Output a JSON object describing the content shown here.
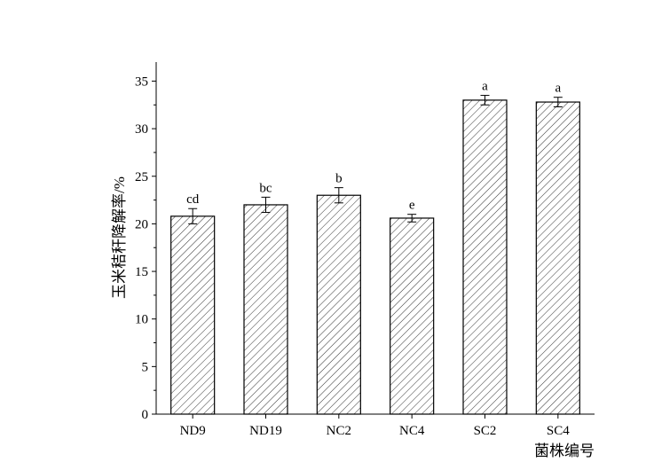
{
  "chart_data": {
    "type": "bar",
    "categories": [
      "ND9",
      "ND19",
      "NC2",
      "NC4",
      "SC2",
      "SC4"
    ],
    "values": [
      20.8,
      22.0,
      23.0,
      20.6,
      33.0,
      32.8
    ],
    "errors": [
      0.8,
      0.8,
      0.8,
      0.4,
      0.5,
      0.5
    ],
    "annotations": [
      "cd",
      "bc",
      "b",
      "e",
      "a",
      "a"
    ],
    "title": "",
    "xlabel": "菌株编号",
    "ylabel": "玉米秸秆降解率/%",
    "ylim": [
      0,
      37
    ],
    "yticks": [
      0,
      5,
      10,
      15,
      20,
      25,
      30,
      35
    ],
    "grid": false,
    "bar_pattern": "diagonal-hatch",
    "colors": {
      "bar_fill": "#ffffff",
      "hatch": "#000000",
      "axis": "#000000"
    }
  }
}
